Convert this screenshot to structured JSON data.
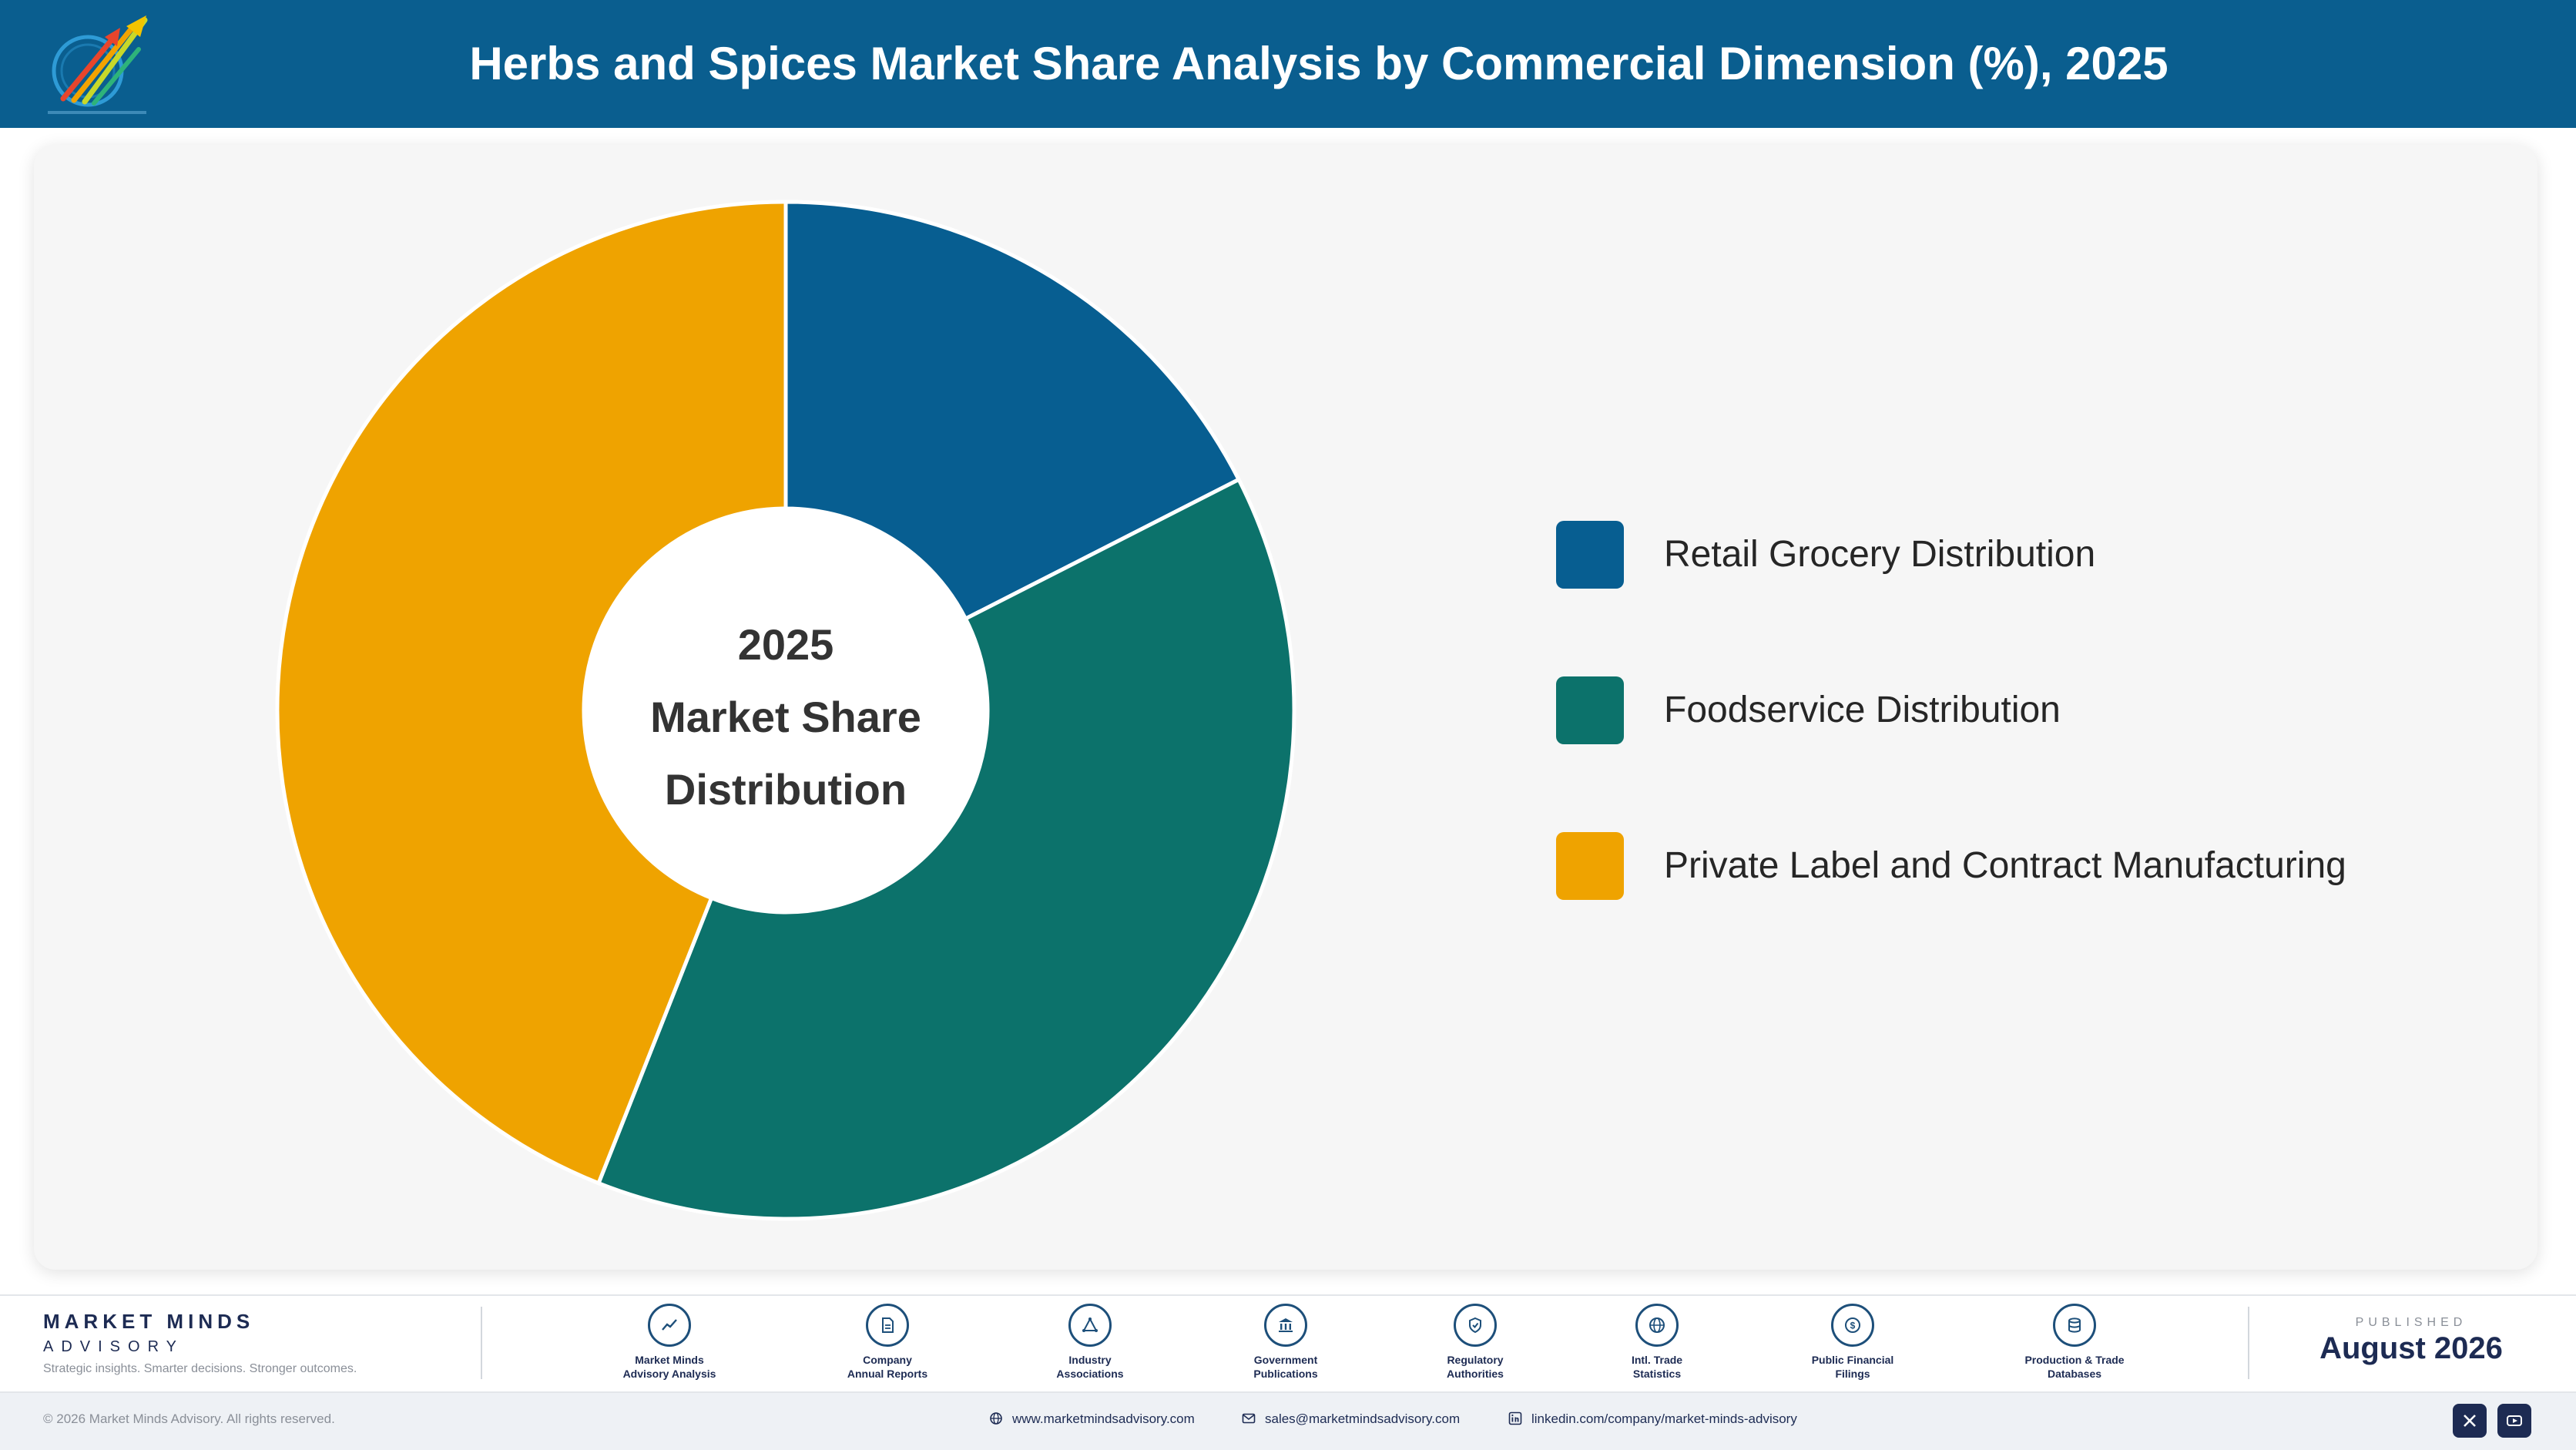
{
  "header": {
    "title": "Herbs and Spices Market Share Analysis by Commercial Dimension (%), 2025",
    "logo_icon": "market-minds-logo-icon"
  },
  "chart_data": {
    "type": "pie",
    "style": "donut",
    "categories": [
      "Retail Grocery Distribution",
      "Foodservice Distribution",
      "Private Label and Contract Manufacturing"
    ],
    "values": [
      17.5,
      38.5,
      44.0
    ],
    "colors": [
      "#075e91",
      "#0c726b",
      "#efa300"
    ],
    "center_label": [
      "2025",
      "Market Share",
      "Distribution"
    ],
    "legend_position": "right"
  },
  "footer": {
    "brand_name": "MARKET MINDS",
    "brand_sub": "ADVISORY",
    "brand_tagline": "Strategic insights. Smarter decisions. Stronger outcomes.",
    "sources": [
      {
        "label": "Market Minds\nAdvisory Analysis",
        "icon": "trend-chart-icon"
      },
      {
        "label": "Company\nAnnual Reports",
        "icon": "document-icon"
      },
      {
        "label": "Industry\nAssociations",
        "icon": "network-icon"
      },
      {
        "label": "Government\nPublications",
        "icon": "government-building-icon"
      },
      {
        "label": "Regulatory\nAuthorities",
        "icon": "shield-check-icon"
      },
      {
        "label": "Intl. Trade\nStatistics",
        "icon": "globe-icon"
      },
      {
        "label": "Public Financial\nFilings",
        "icon": "dollar-coin-icon"
      },
      {
        "label": "Production & Trade\nDatabases",
        "icon": "database-icon"
      }
    ],
    "published_label": "PUBLISHED",
    "published_date": "August 2026",
    "copyright": "© 2026 Market Minds Advisory. All rights reserved.",
    "website": "www.marketmindsadvisory.com",
    "email": "sales@marketmindsadvisory.com",
    "linkedin": "linkedin.com/company/market-minds-advisory",
    "social": [
      "x-icon",
      "youtube-icon"
    ]
  }
}
